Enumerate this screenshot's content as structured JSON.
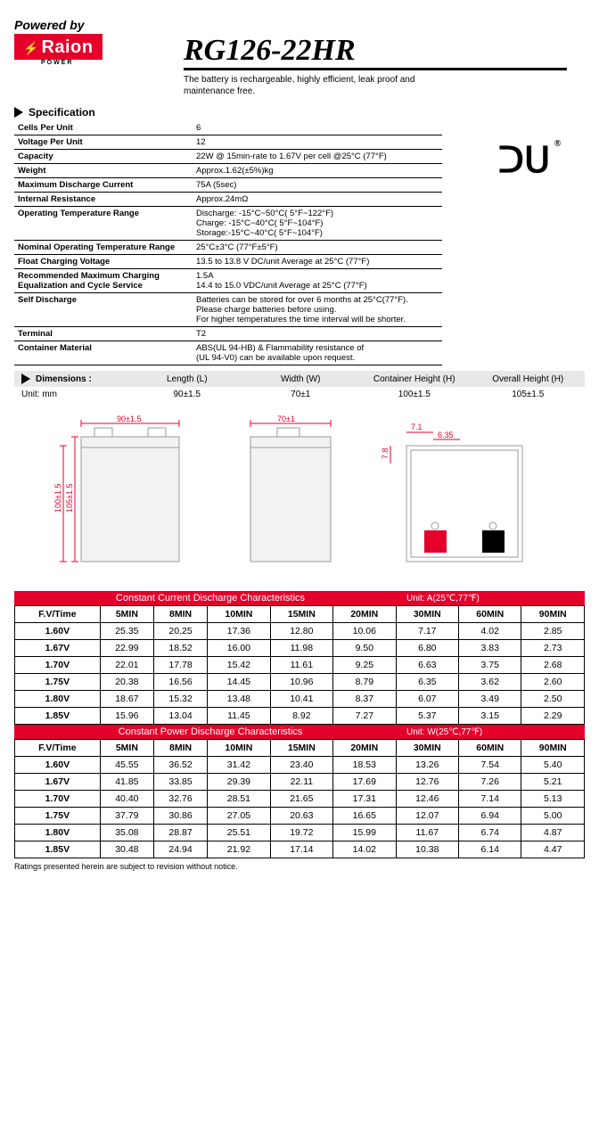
{
  "header": {
    "powered_by": "Powered by",
    "brand": "Raion",
    "brand_sub": "POWER",
    "model": "RG126-22HR",
    "desc": "The battery is rechargeable, highly efficient, leak proof and maintenance free."
  },
  "section_spec": "Specification",
  "ul_mark": "RU",
  "spec_rows": [
    {
      "k": "Cells Per Unit",
      "v": "6"
    },
    {
      "k": "Voltage Per Unit",
      "v": "12"
    },
    {
      "k": "Capacity",
      "v": "22W @ 15min-rate to 1.67V per cell @25°C (77°F)"
    },
    {
      "k": "Weight",
      "v": "Approx.1.62(±5%)kg"
    },
    {
      "k": "Maximum Discharge Current",
      "v": "75A (5sec)"
    },
    {
      "k": "Internal Resistance",
      "v": "Approx.24mΩ"
    },
    {
      "k": "Operating Temperature Range",
      "v": "Discharge: -15°C~50°C( 5°F~122°F)\nCharge: -15°C~40°C( 5°F~104°F)\nStorage:-15°C~40°C( 5°F~104°F)"
    },
    {
      "k": "Nominal Operating Temperature Range",
      "v": "25°C±3°C (77°F±5°F)"
    },
    {
      "k": "Float Charging Voltage",
      "v": "13.5 to 13.8 V DC/unit Average at 25°C (77°F)"
    },
    {
      "k": "Recommended Maximum Charging Equalization and Cycle Service",
      "v": "1.5A\n14.4 to 15.0 VDC/unit Average at 25°C (77°F)"
    },
    {
      "k": "Self Discharge",
      "v": "Batteries can be stored for over 6 months at 25°C(77°F).\nPlease charge batteries before using.\nFor higher temperatures the time interval will be shorter."
    },
    {
      "k": "Terminal",
      "v": "T2"
    },
    {
      "k": "Container Material",
      "v": "ABS(UL 94-HB) & Flammability resistance of\n(UL 94-V0) can be available upon request."
    }
  ],
  "dimensions": {
    "label": "Dimensions :",
    "unit": "Unit: mm",
    "cols": [
      "Length (L)",
      "Width (W)",
      "Container Height (H)",
      "Overall Height (H)"
    ],
    "vals": [
      "90±1.5",
      "70±1",
      "100±1.5",
      "105±1.5"
    ]
  },
  "diagram": {
    "dim_L": "90±1.5",
    "dim_W": "70±1",
    "dim_H": "100±1.5",
    "dim_OH": "105±1.5",
    "dim_t1": "7.8",
    "dim_t2": "7.1",
    "dim_t3": "6.35",
    "colors": {
      "dim_line": "#e4002b",
      "box_fill": "#f2f2f2",
      "box_stroke": "#999999"
    }
  },
  "tables": {
    "t1_title": "Constant Current Discharge Characteristics",
    "t1_unit": "Unit: A(25℃,77℉)",
    "t2_title": "Constant Power Discharge Characteristics",
    "t2_unit": "Unit: W(25℃,77℉)",
    "colhead": [
      "F.V/Time",
      "5MIN",
      "8MIN",
      "10MIN",
      "15MIN",
      "20MIN",
      "30MIN",
      "60MIN",
      "90MIN"
    ],
    "rowheads": [
      "1.60V",
      "1.67V",
      "1.70V",
      "1.75V",
      "1.80V",
      "1.85V"
    ],
    "t1": [
      [
        "25.35",
        "20.25",
        "17.36",
        "12.80",
        "10.06",
        "7.17",
        "4.02",
        "2.85"
      ],
      [
        "22.99",
        "18.52",
        "16.00",
        "11.98",
        "9.50",
        "6.80",
        "3.83",
        "2.73"
      ],
      [
        "22.01",
        "17.78",
        "15.42",
        "11.61",
        "9.25",
        "6.63",
        "3.75",
        "2.68"
      ],
      [
        "20.38",
        "16.56",
        "14.45",
        "10.96",
        "8.79",
        "6.35",
        "3.62",
        "2.60"
      ],
      [
        "18.67",
        "15.32",
        "13.48",
        "10.41",
        "8.37",
        "6.07",
        "3.49",
        "2.50"
      ],
      [
        "15.96",
        "13.04",
        "11.45",
        "8.92",
        "7.27",
        "5.37",
        "3.15",
        "2.29"
      ]
    ],
    "t2": [
      [
        "45.55",
        "36.52",
        "31.42",
        "23.40",
        "18.53",
        "13.26",
        "7.54",
        "5.40"
      ],
      [
        "41.85",
        "33.85",
        "29.39",
        "22.11",
        "17.69",
        "12.76",
        "7.26",
        "5.21"
      ],
      [
        "40.40",
        "32.76",
        "28.51",
        "21.65",
        "17.31",
        "12.46",
        "7.14",
        "5.13"
      ],
      [
        "37.79",
        "30.86",
        "27.05",
        "20.63",
        "16.65",
        "12.07",
        "6.94",
        "5.00"
      ],
      [
        "35.08",
        "28.87",
        "25.51",
        "19.72",
        "15.99",
        "11.67",
        "6.74",
        "4.87"
      ],
      [
        "30.48",
        "24.94",
        "21.92",
        "17.14",
        "14.02",
        "10.38",
        "6.14",
        "4.47"
      ]
    ]
  },
  "footnote": "Ratings presented herein are subject to revision without notice.",
  "colors": {
    "accent": "#e4002b",
    "grey": "#e8e8e8"
  }
}
